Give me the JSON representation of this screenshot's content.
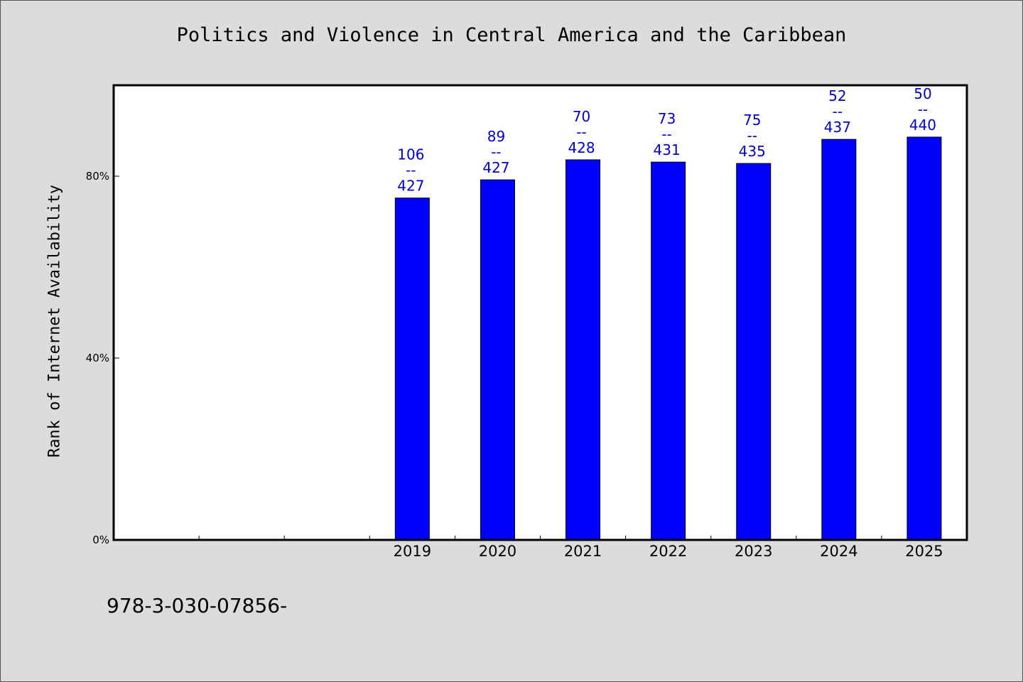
{
  "chart_data": {
    "type": "bar",
    "title": "Politics and Violence in Central America and the Caribbean",
    "xlabel": "",
    "ylabel": "Rank of Internet Availability",
    "categories": [
      "",
      "",
      "",
      "2019",
      "2020",
      "2021",
      "2022",
      "2023",
      "2024",
      "2025"
    ],
    "values": [
      null,
      null,
      null,
      75.2,
      79.2,
      83.6,
      83.1,
      82.8,
      88.1,
      88.6
    ],
    "data_labels": [
      null,
      null,
      null,
      [
        "106",
        "--",
        "427"
      ],
      [
        "89",
        "--",
        "427"
      ],
      [
        "70",
        "--",
        "428"
      ],
      [
        "73",
        "--",
        "431"
      ],
      [
        "75",
        "--",
        "435"
      ],
      [
        "52",
        "--",
        "437"
      ],
      [
        "50",
        "--",
        "440"
      ]
    ],
    "yticks": [
      0,
      40,
      80
    ],
    "ytick_labels": [
      "0%",
      "40%",
      "80%"
    ],
    "ylim": [
      0,
      100
    ],
    "grid": false,
    "legend": "none",
    "colors": {
      "bar": "#0000ff",
      "label": "#0000cc",
      "background": "#dcdcdc",
      "plot_background": "#ffffff"
    }
  },
  "footer_text": "978-3-030-07856-"
}
